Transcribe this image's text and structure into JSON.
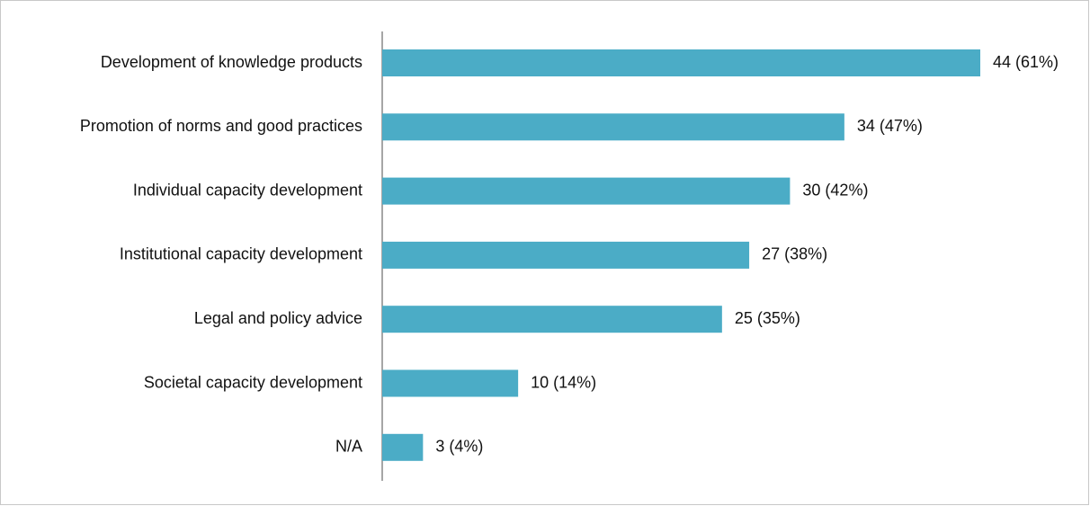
{
  "chart_data": {
    "type": "bar",
    "orientation": "horizontal",
    "categories": [
      "Development of knowledge products",
      "Promotion of norms and good practices",
      "Individual capacity development",
      "Institutional capacity development",
      "Legal and policy advice",
      "Societal capacity development",
      "N/A"
    ],
    "values": [
      44,
      34,
      30,
      27,
      25,
      10,
      3
    ],
    "value_labels": [
      "44 (61%)",
      "34 (47%)",
      "30 (42%)",
      "27 (38%)",
      "25 (35%)",
      "10 (14%)",
      "3 (4%)"
    ],
    "color": "#4bacc6"
  }
}
